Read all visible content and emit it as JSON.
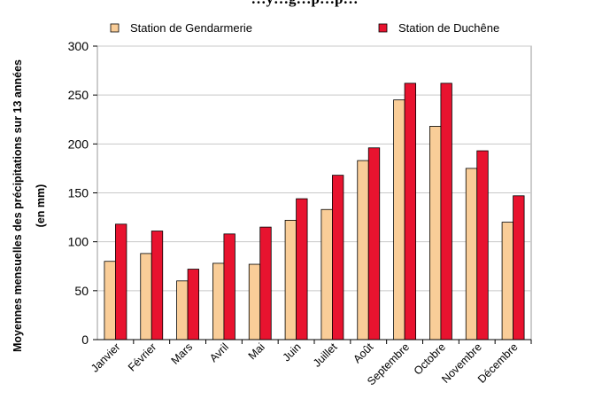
{
  "chart_data": {
    "type": "bar",
    "title": "…y…g…p…p…",
    "ylabel_line1": "Moyennes mensuelles des précipitations sur 13 années",
    "ylabel_line2": "(en mm)",
    "xlabel": "",
    "ylim": [
      0,
      300
    ],
    "yticks": [
      0,
      50,
      100,
      150,
      200,
      250,
      300
    ],
    "grid": true,
    "legend_position": "top",
    "categories": [
      "Janvier",
      "Février",
      "Mars",
      "Avril",
      "Mai",
      "Juin",
      "Juillet",
      "Août",
      "Septembre",
      "Octobre",
      "Novembre",
      "Décembre"
    ],
    "series": [
      {
        "name": "Station de Gendarmerie",
        "color": "#f9cd98",
        "values": [
          80,
          88,
          60,
          78,
          77,
          122,
          133,
          183,
          245,
          218,
          175,
          120
        ]
      },
      {
        "name": "Station de Duchêne",
        "color": "#e8132f",
        "values": [
          118,
          111,
          72,
          108,
          115,
          144,
          168,
          196,
          262,
          262,
          193,
          147
        ]
      }
    ]
  }
}
